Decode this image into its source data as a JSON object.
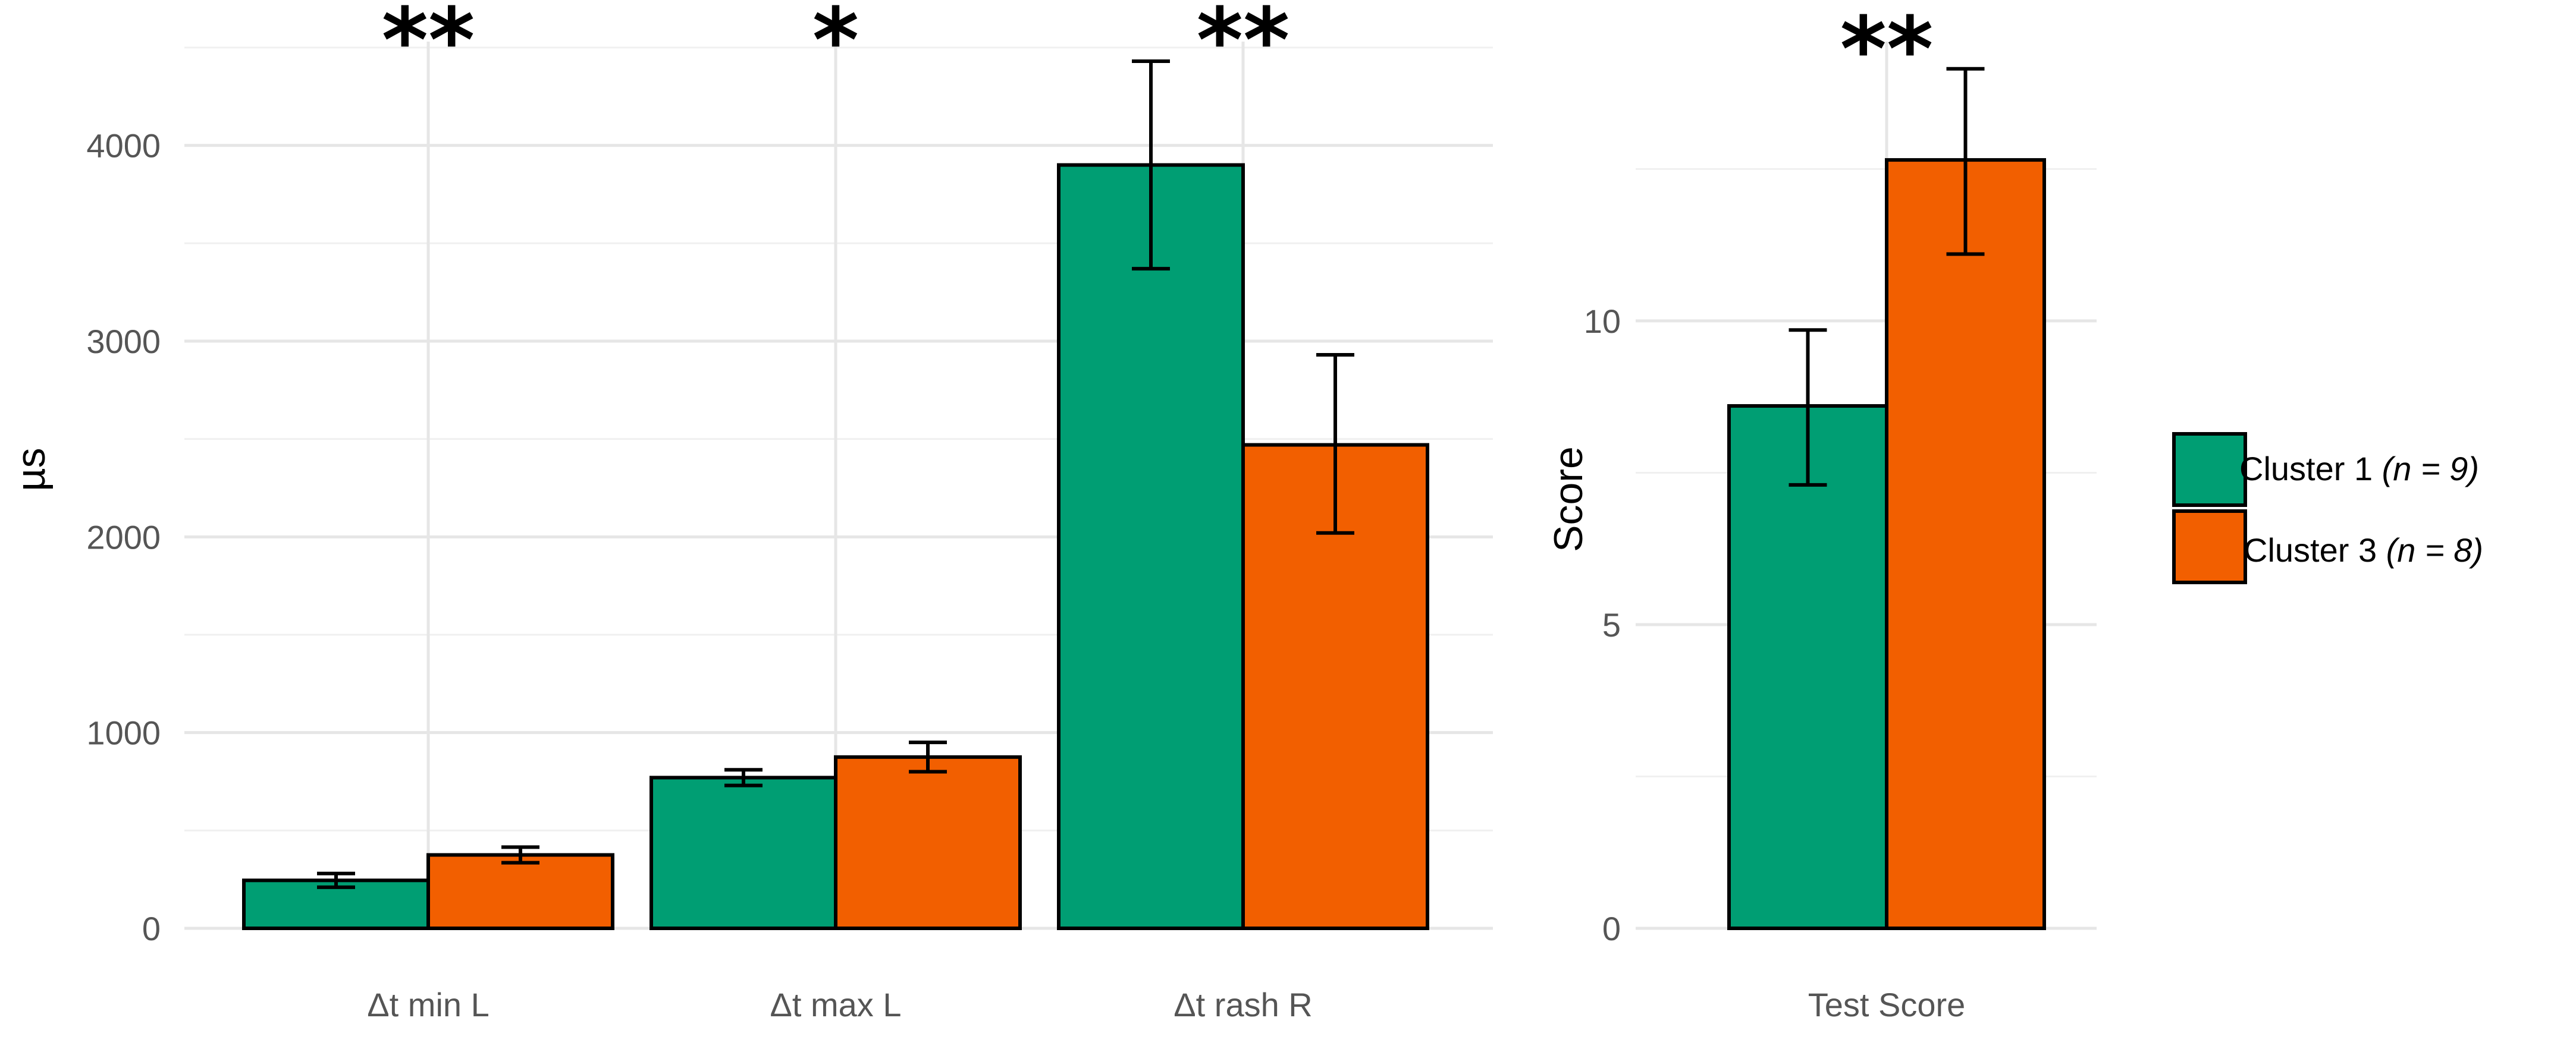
{
  "chart_data": [
    {
      "type": "bar",
      "ylabel": "µs",
      "xlabel": "",
      "ylim": [
        0,
        4500
      ],
      "yticks": [
        0,
        1000,
        2000,
        3000,
        4000
      ],
      "ytick_labels": [
        "0",
        "1000",
        "2000",
        "3000",
        "4000"
      ],
      "categories": [
        "Δt min L",
        "Δt max L",
        "Δt rash R"
      ],
      "significance": [
        "**",
        "*",
        "**"
      ],
      "series": [
        {
          "name": "Cluster 1",
          "values": [
            245,
            770,
            3900
          ],
          "err_low": [
            210,
            730,
            3370
          ],
          "err_high": [
            280,
            810,
            4430
          ]
        },
        {
          "name": "Cluster 3",
          "values": [
            375,
            875,
            2470
          ],
          "err_low": [
            335,
            800,
            2020
          ],
          "err_high": [
            415,
            950,
            2930
          ]
        }
      ]
    },
    {
      "type": "bar",
      "ylabel": "Score",
      "xlabel": "",
      "ylim": [
        0,
        14.5
      ],
      "yticks": [
        0,
        5,
        10
      ],
      "ytick_labels": [
        "0",
        "5",
        "10"
      ],
      "categories": [
        "Test Score"
      ],
      "significance": [
        "**"
      ],
      "series": [
        {
          "name": "Cluster 1",
          "values": [
            8.6
          ],
          "err_low": [
            7.3
          ],
          "err_high": [
            9.85
          ]
        },
        {
          "name": "Cluster 3",
          "values": [
            12.65
          ],
          "err_low": [
            11.1
          ],
          "err_high": [
            14.15
          ]
        }
      ]
    }
  ],
  "legend": {
    "items": [
      {
        "label": "Cluster 1 ",
        "label_italic": "(n = 9)",
        "color": "#009E73"
      },
      {
        "label": "Cluster 3 ",
        "label_italic": "(n = 8)",
        "color": "#F25F00"
      }
    ]
  },
  "colors": {
    "cluster1": "#009E73",
    "cluster3": "#F25F00"
  }
}
